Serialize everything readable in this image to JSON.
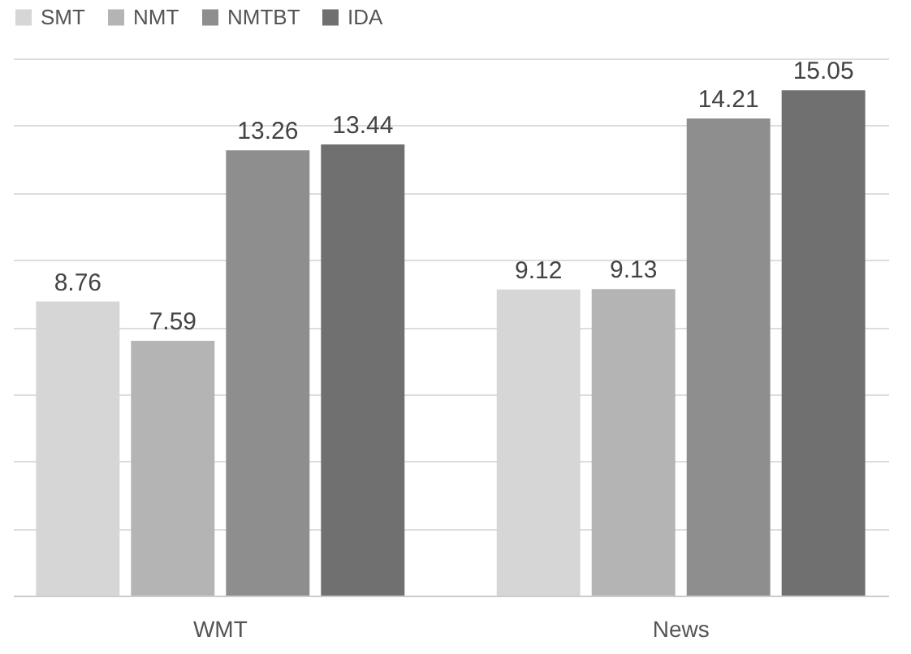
{
  "chart_data": {
    "type": "bar",
    "categories": [
      "WMT",
      "News"
    ],
    "series": [
      {
        "name": "SMT",
        "color": "#d6d6d6",
        "values": [
          8.76,
          9.12
        ]
      },
      {
        "name": "NMT",
        "color": "#b4b4b4",
        "values": [
          7.59,
          9.13
        ]
      },
      {
        "name": "NMTBT",
        "color": "#8e8e8e",
        "values": [
          13.26,
          14.21
        ]
      },
      {
        "name": "IDA",
        "color": "#707070",
        "values": [
          13.44,
          15.05
        ]
      }
    ],
    "ylim": [
      0,
      16
    ],
    "yticks": [
      {
        "value": 0,
        "label": null
      },
      {
        "value": 2,
        "label": null
      },
      {
        "value": 4,
        "label": null
      },
      {
        "value": 6,
        "label": null
      },
      {
        "value": 8,
        "label": null
      },
      {
        "value": 10,
        "label": null
      },
      {
        "value": 12,
        "label": null
      },
      {
        "value": 14,
        "label": null
      },
      {
        "value": 16,
        "label": null
      }
    ],
    "grid": "y",
    "tick_labels": "x",
    "legend": "top left",
    "data_labels": true
  }
}
